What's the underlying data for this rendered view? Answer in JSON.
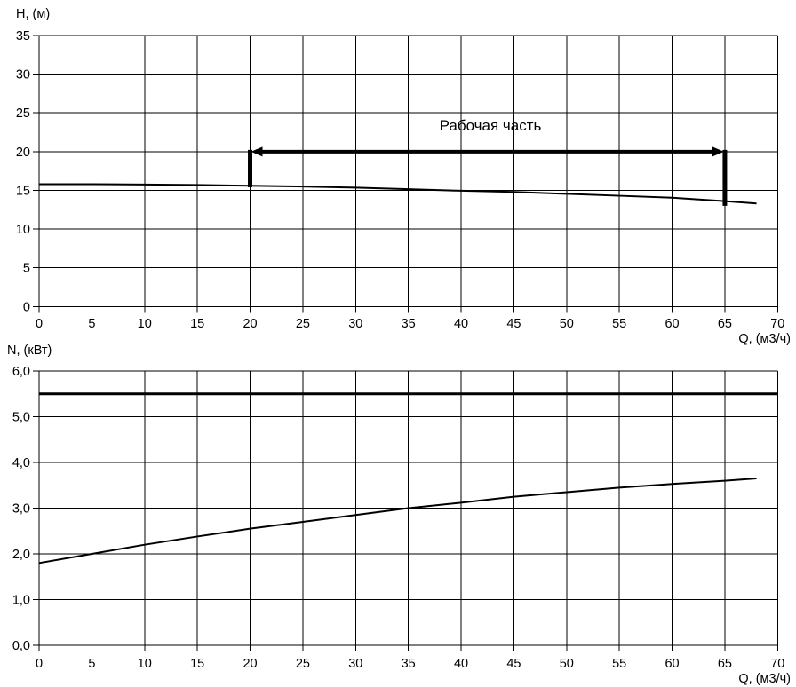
{
  "page": {
    "background": "#ffffff",
    "line_color": "#000000"
  },
  "chart_data": [
    {
      "type": "line",
      "id": "head-chart",
      "title": "",
      "ylabel": "H, (м)",
      "xlabel": "Q, (м3/ч)",
      "xlim": [
        0,
        70
      ],
      "ylim": [
        0,
        35
      ],
      "grid": true,
      "x_ticks": [
        0,
        5,
        10,
        15,
        20,
        25,
        30,
        35,
        40,
        45,
        50,
        55,
        60,
        65,
        70
      ],
      "x_tick_labels": [
        "0",
        "5",
        "10",
        "15",
        "20",
        "25",
        "30",
        "35",
        "40",
        "45",
        "50",
        "55",
        "60",
        "65",
        "70"
      ],
      "y_ticks": [
        0,
        5,
        10,
        15,
        20,
        25,
        30,
        35
      ],
      "y_tick_labels": [
        "0",
        "5",
        "10",
        "15",
        "20",
        "25",
        "30",
        "35"
      ],
      "series": [
        {
          "name": "pump-head-curve",
          "stroke_width": 2,
          "x": [
            0,
            5,
            10,
            15,
            20,
            25,
            30,
            35,
            40,
            45,
            50,
            55,
            60,
            65,
            68
          ],
          "y": [
            15.8,
            15.8,
            15.75,
            15.7,
            15.6,
            15.5,
            15.35,
            15.15,
            14.95,
            14.8,
            14.55,
            14.3,
            14.05,
            13.6,
            13.3
          ]
        }
      ],
      "annotation": {
        "label": "Рабочая часть",
        "arrow_y": 20,
        "x_from": 20,
        "x_to": 65,
        "left_bar_bottom": 15.4,
        "right_bar_bottom": 13.0,
        "label_x": 42.8,
        "label_y": 22.9
      }
    },
    {
      "type": "line",
      "id": "power-chart",
      "title": "",
      "ylabel": "N, (кВт)",
      "xlabel": "Q, (м3/ч)",
      "xlim": [
        0,
        70
      ],
      "ylim": [
        0,
        6
      ],
      "grid": true,
      "x_ticks": [
        0,
        5,
        10,
        15,
        20,
        25,
        30,
        35,
        40,
        45,
        50,
        55,
        60,
        65,
        70
      ],
      "x_tick_labels": [
        "0",
        "5",
        "10",
        "15",
        "20",
        "25",
        "30",
        "35",
        "40",
        "45",
        "50",
        "55",
        "60",
        "65",
        "70"
      ],
      "y_ticks": [
        0,
        1,
        2,
        3,
        4,
        5,
        6
      ],
      "y_tick_labels": [
        "0,0",
        "1,0",
        "2,0",
        "3,0",
        "4,0",
        "5,0",
        "6,0"
      ],
      "series": [
        {
          "name": "power-limit-line",
          "stroke_width": 3,
          "x": [
            0,
            70
          ],
          "y": [
            5.5,
            5.5
          ]
        },
        {
          "name": "pump-power-curve",
          "stroke_width": 2,
          "x": [
            0,
            5,
            10,
            15,
            20,
            25,
            30,
            35,
            40,
            45,
            50,
            55,
            60,
            65,
            68
          ],
          "y": [
            1.8,
            2.0,
            2.2,
            2.38,
            2.55,
            2.7,
            2.85,
            3.0,
            3.12,
            3.25,
            3.35,
            3.45,
            3.53,
            3.6,
            3.65
          ]
        }
      ]
    }
  ]
}
